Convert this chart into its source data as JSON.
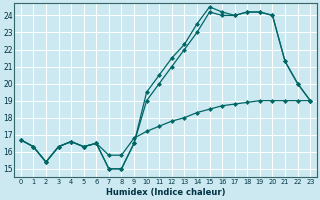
{
  "xlabel": "Humidex (Indice chaleur)",
  "bg_color": "#cce8f0",
  "grid_color": "#ffffff",
  "line_color": "#006666",
  "xlim": [
    -0.5,
    23.5
  ],
  "ylim": [
    14.5,
    24.7
  ],
  "xticks": [
    0,
    1,
    2,
    3,
    4,
    5,
    6,
    7,
    8,
    9,
    10,
    11,
    12,
    13,
    14,
    15,
    16,
    17,
    18,
    19,
    20,
    21,
    22,
    23
  ],
  "yticks": [
    15,
    16,
    17,
    18,
    19,
    20,
    21,
    22,
    23,
    24
  ],
  "line1_x": [
    0,
    1,
    2,
    3,
    4,
    5,
    6,
    7,
    8,
    9,
    10,
    11,
    12,
    13,
    14,
    15,
    16,
    17,
    18,
    19,
    20,
    21,
    22,
    23
  ],
  "line1_y": [
    16.7,
    16.3,
    15.4,
    16.3,
    16.6,
    16.3,
    16.5,
    15.0,
    15.0,
    16.5,
    19.5,
    20.5,
    21.5,
    22.3,
    23.5,
    24.5,
    24.2,
    24.0,
    24.2,
    24.2,
    24.0,
    21.3,
    20.0,
    19.0
  ],
  "line2_x": [
    0,
    1,
    2,
    3,
    4,
    5,
    6,
    7,
    8,
    9,
    10,
    11,
    12,
    13,
    14,
    15,
    16,
    17,
    18,
    19,
    20,
    21,
    22,
    23
  ],
  "line2_y": [
    16.7,
    16.3,
    15.4,
    16.3,
    16.6,
    16.3,
    16.5,
    15.0,
    15.0,
    16.5,
    19.0,
    20.0,
    21.0,
    22.0,
    23.0,
    24.2,
    24.0,
    24.0,
    24.2,
    24.2,
    24.0,
    21.3,
    20.0,
    19.0
  ],
  "line3_x": [
    0,
    1,
    2,
    3,
    4,
    5,
    6,
    7,
    8,
    9,
    10,
    11,
    12,
    13,
    14,
    15,
    16,
    17,
    18,
    19,
    20,
    21,
    22,
    23
  ],
  "line3_y": [
    16.7,
    16.3,
    15.4,
    16.3,
    16.6,
    16.3,
    16.5,
    15.8,
    15.8,
    16.8,
    17.2,
    17.5,
    17.8,
    18.0,
    18.3,
    18.5,
    18.7,
    18.8,
    18.9,
    19.0,
    19.0,
    19.0,
    19.0,
    19.0
  ]
}
